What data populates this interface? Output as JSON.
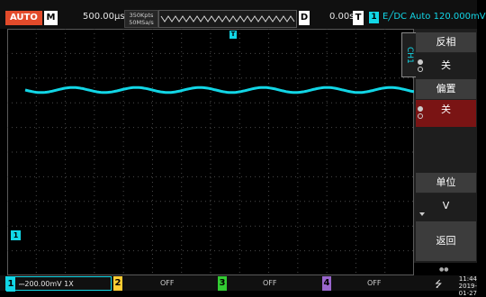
{
  "topbar": {
    "mode": "AUTO",
    "m_label": "M",
    "timebase": "500.00μs",
    "sample_points": "350Kpts",
    "sample_rate": "50MSa/s",
    "d_label": "D",
    "horizontal_position": "0.00s",
    "t_label": "T",
    "trigger_channel": "1",
    "trigger_info": "E╱DC Auto 120.000mV"
  },
  "plot": {
    "channel_marker": "1",
    "trigger_marker": "T"
  },
  "menu": {
    "tab": "CH1",
    "invert_label": "反相",
    "invert_value": "关",
    "offset_label": "偏置",
    "offset_value": "关",
    "unit_label": "单位",
    "unit_value": "V",
    "back_label": "返回",
    "page_dots": "●●"
  },
  "bottombar": {
    "ch1": {
      "num": "1",
      "text": "⎓200.00mV 1X"
    },
    "ch2": {
      "num": "2",
      "text": "OFF"
    },
    "ch3": {
      "num": "3",
      "text": "OFF"
    },
    "ch4": {
      "num": "4",
      "text": "OFF"
    },
    "time": "11:44",
    "date": "2019-01-27"
  },
  "colors": {
    "ch1": "#12d6e6",
    "ch2": "#ffcc33",
    "ch3": "#33cc33",
    "ch4": "#9966cc",
    "mode": "#e34b2b",
    "offset_highlight": "#7a1414"
  }
}
